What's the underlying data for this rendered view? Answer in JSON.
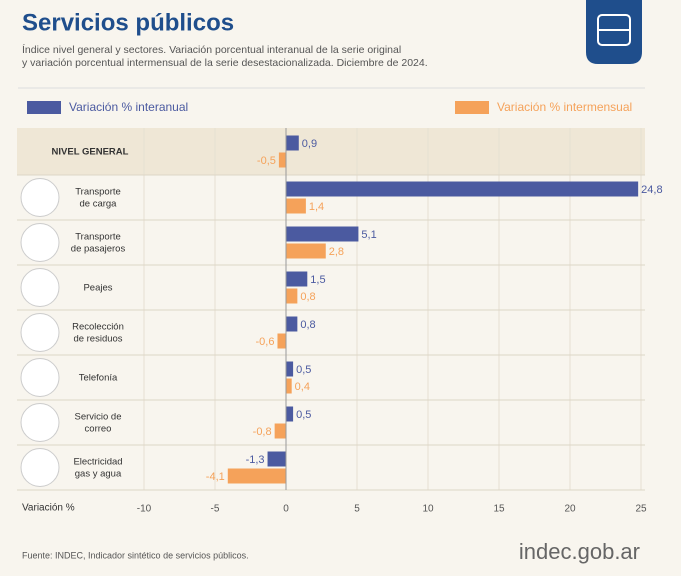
{
  "chart_data": {
    "type": "hbar",
    "title": "Servicios públicos",
    "subtitle": [
      "Índice nivel general y sectores. Variación porcentual interanual de la serie original",
      "y variación porcentual intermensual de la serie desestacionalizada. Diciembre de 2024."
    ],
    "categories": [
      [
        "NIVEL GENERAL"
      ],
      [
        "Transporte",
        "de carga"
      ],
      [
        "Transporte",
        "de pasajeros"
      ],
      [
        "Peajes"
      ],
      [
        "Recolección",
        "de residuos"
      ],
      [
        "Telefonía"
      ],
      [
        "Servicio de",
        "correo"
      ],
      [
        "Electricidad",
        "gas y agua"
      ]
    ],
    "series": [
      {
        "name": "Variación % interanual",
        "color": "#4b5aa0",
        "values": [
          0.9,
          24.8,
          5.1,
          1.5,
          0.8,
          0.5,
          0.5,
          -1.3
        ],
        "value_labels": [
          "0,9",
          "24,8",
          "5,1",
          "1,5",
          "0,8",
          "0,5",
          "0,5",
          "-1,3"
        ]
      },
      {
        "name": "Variación % intermensual",
        "color": "#f5a25a",
        "values": [
          -0.5,
          1.4,
          2.8,
          0.8,
          -0.6,
          0.4,
          -0.8,
          -4.1
        ],
        "value_labels": [
          "-0,5",
          "1,4",
          "2,8",
          "0,8",
          "-0,6",
          "0,4",
          "-0,8",
          "-4,1"
        ]
      }
    ],
    "xlabel": "Variación %",
    "xlim": [
      -10,
      25
    ],
    "xticks": [
      -10,
      -5,
      0,
      5,
      10,
      15,
      20,
      25
    ],
    "grid": true,
    "source": "Fuente: INDEC, Indicador sintético de servicios públicos.",
    "logo": "indec.gob.ar"
  }
}
